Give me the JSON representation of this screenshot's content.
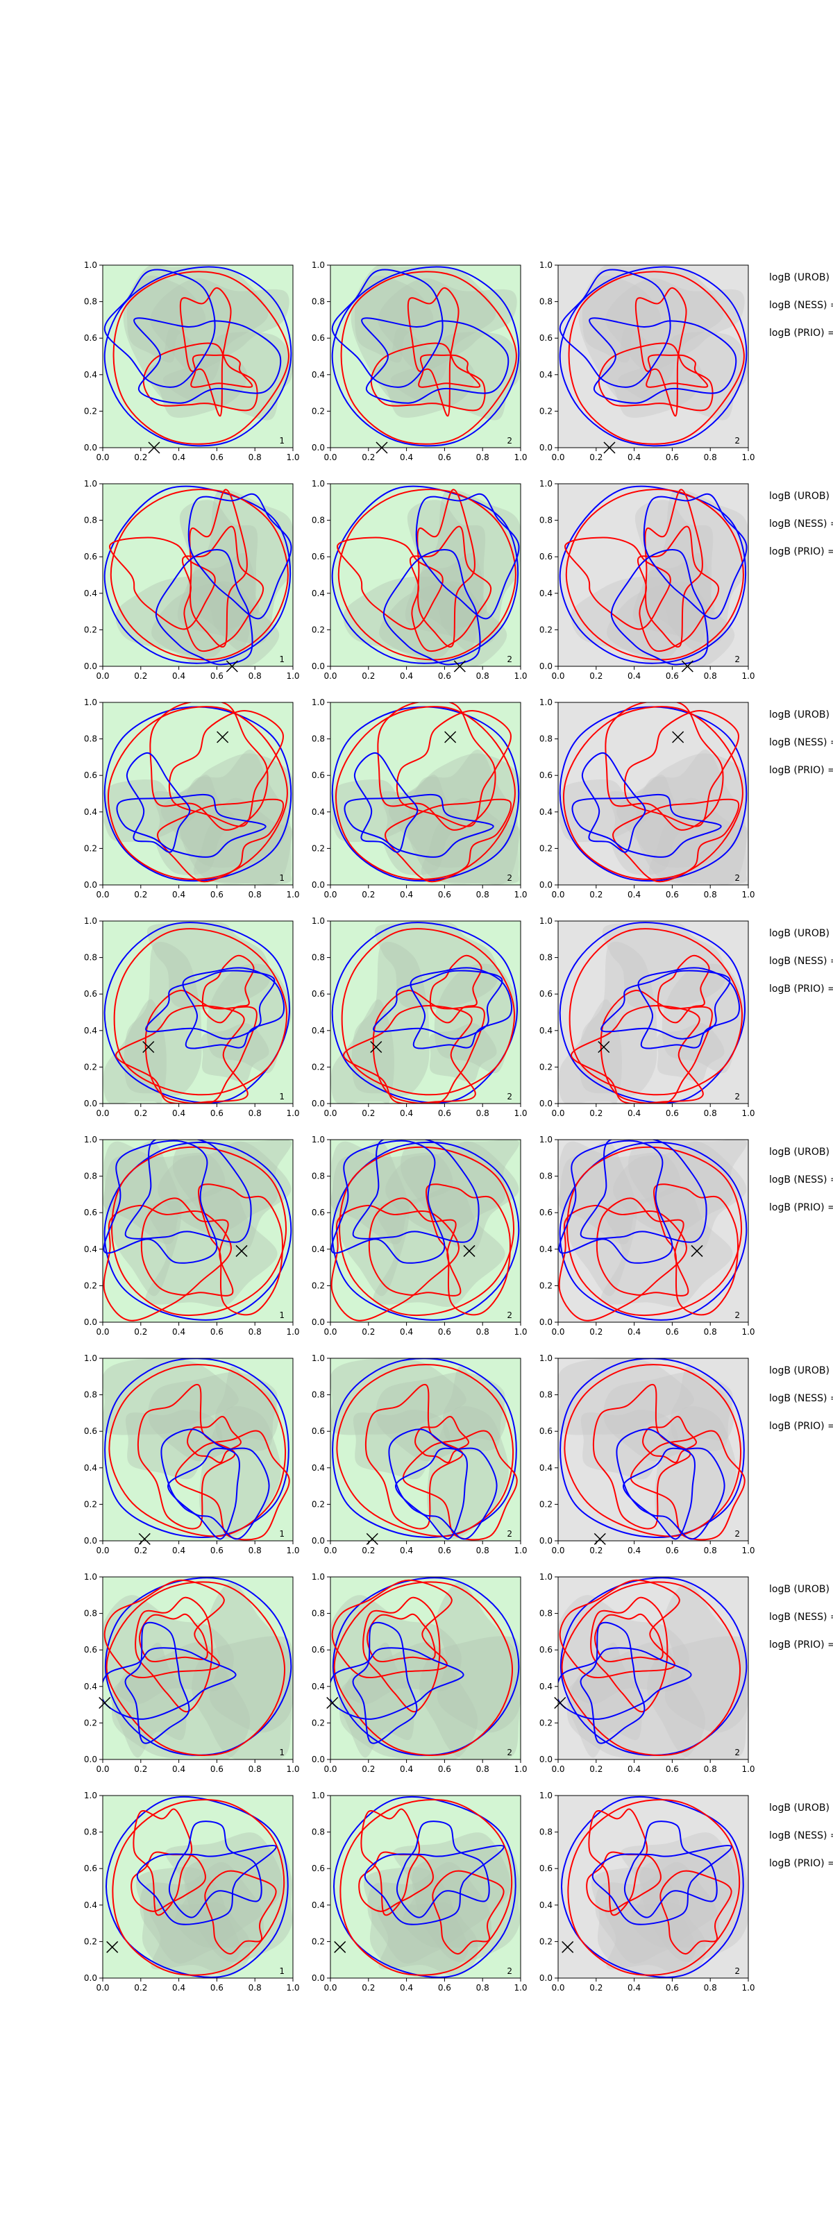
{
  "colors": {
    "green_fill": "#d3f5d3",
    "grey_fill": "#e3e3e3",
    "shade_light": "#b4c8b4",
    "shade_grey": "#c8c8c8",
    "red_contour": "#ff0000",
    "blue_contour": "#0000ff",
    "marker": "#000000"
  },
  "chart_data": [
    {
      "type": "contour",
      "row": 1,
      "col": 1,
      "bg": "green",
      "corner_label": "1",
      "marker": {
        "x": 0.27,
        "y": 0.0
      },
      "xlim": [
        0,
        1
      ],
      "ylim": [
        0,
        1
      ],
      "xticks": [
        "0.0",
        "0.2",
        "0.4",
        "0.6",
        "0.8",
        "1.0"
      ],
      "yticks": [
        "0.0",
        "0.2",
        "0.4",
        "0.6",
        "0.8",
        "1.0"
      ],
      "grid": false
    },
    {
      "type": "contour",
      "row": 1,
      "col": 2,
      "bg": "green",
      "corner_label": "2",
      "marker": {
        "x": 0.27,
        "y": 0.0
      },
      "xlim": [
        0,
        1
      ],
      "ylim": [
        0,
        1
      ],
      "xticks": [
        "0.0",
        "0.2",
        "0.4",
        "0.6",
        "0.8",
        "1.0"
      ],
      "yticks": [
        "0.0",
        "0.2",
        "0.4",
        "0.6",
        "0.8",
        "1.0"
      ],
      "grid": false
    },
    {
      "type": "contour",
      "row": 1,
      "col": 3,
      "bg": "grey",
      "corner_label": "2",
      "marker": {
        "x": 0.27,
        "y": 0.0
      },
      "xlim": [
        0,
        1
      ],
      "ylim": [
        0,
        1
      ],
      "xticks": [
        "0.0",
        "0.2",
        "0.4",
        "0.6",
        "0.8",
        "1.0"
      ],
      "yticks": [
        "0.0",
        "0.2",
        "0.4",
        "0.6",
        "0.8",
        "1.0"
      ],
      "grid": false
    },
    {
      "type": "contour",
      "row": 2,
      "col": 1,
      "bg": "green",
      "corner_label": "1",
      "marker": {
        "x": 0.68,
        "y": 0.0
      },
      "xlim": [
        0,
        1
      ],
      "ylim": [
        0,
        1
      ],
      "xticks": [
        "0.0",
        "0.2",
        "0.4",
        "0.6",
        "0.8",
        "1.0"
      ],
      "yticks": [
        "0.0",
        "0.2",
        "0.4",
        "0.6",
        "0.8",
        "1.0"
      ],
      "grid": false
    },
    {
      "type": "contour",
      "row": 2,
      "col": 2,
      "bg": "green",
      "corner_label": "2",
      "marker": {
        "x": 0.68,
        "y": 0.0
      },
      "xlim": [
        0,
        1
      ],
      "ylim": [
        0,
        1
      ],
      "xticks": [
        "0.0",
        "0.2",
        "0.4",
        "0.6",
        "0.8",
        "1.0"
      ],
      "yticks": [
        "0.0",
        "0.2",
        "0.4",
        "0.6",
        "0.8",
        "1.0"
      ],
      "grid": false
    },
    {
      "type": "contour",
      "row": 2,
      "col": 3,
      "bg": "grey",
      "corner_label": "2",
      "marker": {
        "x": 0.68,
        "y": 0.0
      },
      "xlim": [
        0,
        1
      ],
      "ylim": [
        0,
        1
      ],
      "xticks": [
        "0.0",
        "0.2",
        "0.4",
        "0.6",
        "0.8",
        "1.0"
      ],
      "yticks": [
        "0.0",
        "0.2",
        "0.4",
        "0.6",
        "0.8",
        "1.0"
      ],
      "grid": false
    },
    {
      "type": "contour",
      "row": 3,
      "col": 1,
      "bg": "green",
      "corner_label": "1",
      "marker": {
        "x": 0.63,
        "y": 0.81
      },
      "xlim": [
        0,
        1
      ],
      "ylim": [
        0,
        1
      ],
      "xticks": [
        "0.0",
        "0.2",
        "0.4",
        "0.6",
        "0.8",
        "1.0"
      ],
      "yticks": [
        "0.0",
        "0.2",
        "0.4",
        "0.6",
        "0.8",
        "1.0"
      ],
      "grid": false
    },
    {
      "type": "contour",
      "row": 3,
      "col": 2,
      "bg": "green",
      "corner_label": "2",
      "marker": {
        "x": 0.63,
        "y": 0.81
      },
      "xlim": [
        0,
        1
      ],
      "ylim": [
        0,
        1
      ],
      "xticks": [
        "0.0",
        "0.2",
        "0.4",
        "0.6",
        "0.8",
        "1.0"
      ],
      "yticks": [
        "0.0",
        "0.2",
        "0.4",
        "0.6",
        "0.8",
        "1.0"
      ],
      "grid": false
    },
    {
      "type": "contour",
      "row": 3,
      "col": 3,
      "bg": "grey",
      "corner_label": "2",
      "marker": {
        "x": 0.63,
        "y": 0.81
      },
      "xlim": [
        0,
        1
      ],
      "ylim": [
        0,
        1
      ],
      "xticks": [
        "0.0",
        "0.2",
        "0.4",
        "0.6",
        "0.8",
        "1.0"
      ],
      "yticks": [
        "0.0",
        "0.2",
        "0.4",
        "0.6",
        "0.8",
        "1.0"
      ],
      "grid": false
    },
    {
      "type": "contour",
      "row": 4,
      "col": 1,
      "bg": "green",
      "corner_label": "1",
      "marker": {
        "x": 0.24,
        "y": 0.31
      },
      "xlim": [
        0,
        1
      ],
      "ylim": [
        0,
        1
      ],
      "xticks": [
        "0.0",
        "0.2",
        "0.4",
        "0.6",
        "0.8",
        "1.0"
      ],
      "yticks": [
        "0.0",
        "0.2",
        "0.4",
        "0.6",
        "0.8",
        "1.0"
      ],
      "grid": false
    },
    {
      "type": "contour",
      "row": 4,
      "col": 2,
      "bg": "green",
      "corner_label": "2",
      "marker": {
        "x": 0.24,
        "y": 0.31
      },
      "xlim": [
        0,
        1
      ],
      "ylim": [
        0,
        1
      ],
      "xticks": [
        "0.0",
        "0.2",
        "0.4",
        "0.6",
        "0.8",
        "1.0"
      ],
      "yticks": [
        "0.0",
        "0.2",
        "0.4",
        "0.6",
        "0.8",
        "1.0"
      ],
      "grid": false
    },
    {
      "type": "contour",
      "row": 4,
      "col": 3,
      "bg": "grey",
      "corner_label": "2",
      "marker": {
        "x": 0.24,
        "y": 0.31
      },
      "xlim": [
        0,
        1
      ],
      "ylim": [
        0,
        1
      ],
      "xticks": [
        "0.0",
        "0.2",
        "0.4",
        "0.6",
        "0.8",
        "1.0"
      ],
      "yticks": [
        "0.0",
        "0.2",
        "0.4",
        "0.6",
        "0.8",
        "1.0"
      ],
      "grid": false
    },
    {
      "type": "contour",
      "row": 5,
      "col": 1,
      "bg": "green",
      "corner_label": "1",
      "marker": {
        "x": 0.73,
        "y": 0.39
      },
      "xlim": [
        0,
        1
      ],
      "ylim": [
        0,
        1
      ],
      "xticks": [
        "0.0",
        "0.2",
        "0.4",
        "0.6",
        "0.8",
        "1.0"
      ],
      "yticks": [
        "0.0",
        "0.2",
        "0.4",
        "0.6",
        "0.8",
        "1.0"
      ],
      "grid": false
    },
    {
      "type": "contour",
      "row": 5,
      "col": 2,
      "bg": "green",
      "corner_label": "2",
      "marker": {
        "x": 0.73,
        "y": 0.39
      },
      "xlim": [
        0,
        1
      ],
      "ylim": [
        0,
        1
      ],
      "xticks": [
        "0.0",
        "0.2",
        "0.4",
        "0.6",
        "0.8",
        "1.0"
      ],
      "yticks": [
        "0.0",
        "0.2",
        "0.4",
        "0.6",
        "0.8",
        "1.0"
      ],
      "grid": false
    },
    {
      "type": "contour",
      "row": 5,
      "col": 3,
      "bg": "grey",
      "corner_label": "2",
      "marker": {
        "x": 0.73,
        "y": 0.39
      },
      "xlim": [
        0,
        1
      ],
      "ylim": [
        0,
        1
      ],
      "xticks": [
        "0.0",
        "0.2",
        "0.4",
        "0.6",
        "0.8",
        "1.0"
      ],
      "yticks": [
        "0.0",
        "0.2",
        "0.4",
        "0.6",
        "0.8",
        "1.0"
      ],
      "grid": false
    },
    {
      "type": "contour",
      "row": 6,
      "col": 1,
      "bg": "green",
      "corner_label": "1",
      "marker": {
        "x": 0.22,
        "y": 0.01
      },
      "xlim": [
        0,
        1
      ],
      "ylim": [
        0,
        1
      ],
      "xticks": [
        "0.0",
        "0.2",
        "0.4",
        "0.6",
        "0.8",
        "1.0"
      ],
      "yticks": [
        "0.0",
        "0.2",
        "0.4",
        "0.6",
        "0.8",
        "1.0"
      ],
      "grid": false
    },
    {
      "type": "contour",
      "row": 6,
      "col": 2,
      "bg": "green",
      "corner_label": "2",
      "marker": {
        "x": 0.22,
        "y": 0.01
      },
      "xlim": [
        0,
        1
      ],
      "ylim": [
        0,
        1
      ],
      "xticks": [
        "0.0",
        "0.2",
        "0.4",
        "0.6",
        "0.8",
        "1.0"
      ],
      "yticks": [
        "0.0",
        "0.2",
        "0.4",
        "0.6",
        "0.8",
        "1.0"
      ],
      "grid": false
    },
    {
      "type": "contour",
      "row": 6,
      "col": 3,
      "bg": "grey",
      "corner_label": "2",
      "marker": {
        "x": 0.22,
        "y": 0.01
      },
      "xlim": [
        0,
        1
      ],
      "ylim": [
        0,
        1
      ],
      "xticks": [
        "0.0",
        "0.2",
        "0.4",
        "0.6",
        "0.8",
        "1.0"
      ],
      "yticks": [
        "0.0",
        "0.2",
        "0.4",
        "0.6",
        "0.8",
        "1.0"
      ],
      "grid": false
    },
    {
      "type": "contour",
      "row": 7,
      "col": 1,
      "bg": "green",
      "corner_label": "1",
      "marker": {
        "x": 0.01,
        "y": 0.31
      },
      "xlim": [
        0,
        1
      ],
      "ylim": [
        0,
        1
      ],
      "xticks": [
        "0.0",
        "0.2",
        "0.4",
        "0.6",
        "0.8",
        "1.0"
      ],
      "yticks": [
        "0.0",
        "0.2",
        "0.4",
        "0.6",
        "0.8",
        "1.0"
      ],
      "grid": false
    },
    {
      "type": "contour",
      "row": 7,
      "col": 2,
      "bg": "green",
      "corner_label": "2",
      "marker": {
        "x": 0.01,
        "y": 0.31
      },
      "xlim": [
        0,
        1
      ],
      "ylim": [
        0,
        1
      ],
      "xticks": [
        "0.0",
        "0.2",
        "0.4",
        "0.6",
        "0.8",
        "1.0"
      ],
      "yticks": [
        "0.0",
        "0.2",
        "0.4",
        "0.6",
        "0.8",
        "1.0"
      ],
      "grid": false
    },
    {
      "type": "contour",
      "row": 7,
      "col": 3,
      "bg": "grey",
      "corner_label": "2",
      "marker": {
        "x": 0.01,
        "y": 0.31
      },
      "xlim": [
        0,
        1
      ],
      "ylim": [
        0,
        1
      ],
      "xticks": [
        "0.0",
        "0.2",
        "0.4",
        "0.6",
        "0.8",
        "1.0"
      ],
      "yticks": [
        "0.0",
        "0.2",
        "0.4",
        "0.6",
        "0.8",
        "1.0"
      ],
      "grid": false
    },
    {
      "type": "contour",
      "row": 8,
      "col": 1,
      "bg": "green",
      "corner_label": "1",
      "marker": {
        "x": 0.05,
        "y": 0.17
      },
      "xlim": [
        0,
        1
      ],
      "ylim": [
        0,
        1
      ],
      "xticks": [
        "0.0",
        "0.2",
        "0.4",
        "0.6",
        "0.8",
        "1.0"
      ],
      "yticks": [
        "0.0",
        "0.2",
        "0.4",
        "0.6",
        "0.8",
        "1.0"
      ],
      "grid": false
    },
    {
      "type": "contour",
      "row": 8,
      "col": 2,
      "bg": "green",
      "corner_label": "2",
      "marker": {
        "x": 0.05,
        "y": 0.17
      },
      "xlim": [
        0,
        1
      ],
      "ylim": [
        0,
        1
      ],
      "xticks": [
        "0.0",
        "0.2",
        "0.4",
        "0.6",
        "0.8",
        "1.0"
      ],
      "yticks": [
        "0.0",
        "0.2",
        "0.4",
        "0.6",
        "0.8",
        "1.0"
      ],
      "grid": false
    },
    {
      "type": "contour",
      "row": 8,
      "col": 3,
      "bg": "grey",
      "corner_label": "2",
      "marker": {
        "x": 0.05,
        "y": 0.17
      },
      "xlim": [
        0,
        1
      ],
      "ylim": [
        0,
        1
      ],
      "xticks": [
        "0.0",
        "0.2",
        "0.4",
        "0.6",
        "0.8",
        "1.0"
      ],
      "yticks": [
        "0.0",
        "0.2",
        "0.4",
        "0.6",
        "0.8",
        "1.0"
      ],
      "grid": false
    }
  ],
  "row_labels": [
    [
      "logB (UROB) =",
      "logB (NESS) =",
      "logB (PRIO) ="
    ],
    [
      "logB (UROB) =",
      "logB (NESS) =",
      "logB (PRIO) ="
    ],
    [
      "logB (UROB) =",
      "logB (NESS) =",
      "logB (PRIO) ="
    ],
    [
      "logB (UROB) =",
      "logB (NESS) =",
      "logB (PRIO) ="
    ],
    [
      "logB (UROB) =",
      "logB (NESS) =",
      "logB (PRIO) ="
    ],
    [
      "logB (UROB) =",
      "logB (NESS) =",
      "logB (PRIO) ="
    ],
    [
      "logB (UROB) =",
      "logB (NESS) =",
      "logB (PRIO) ="
    ],
    [
      "logB (UROB) =",
      "logB (NESS) =",
      "logB (PRIO) ="
    ]
  ]
}
